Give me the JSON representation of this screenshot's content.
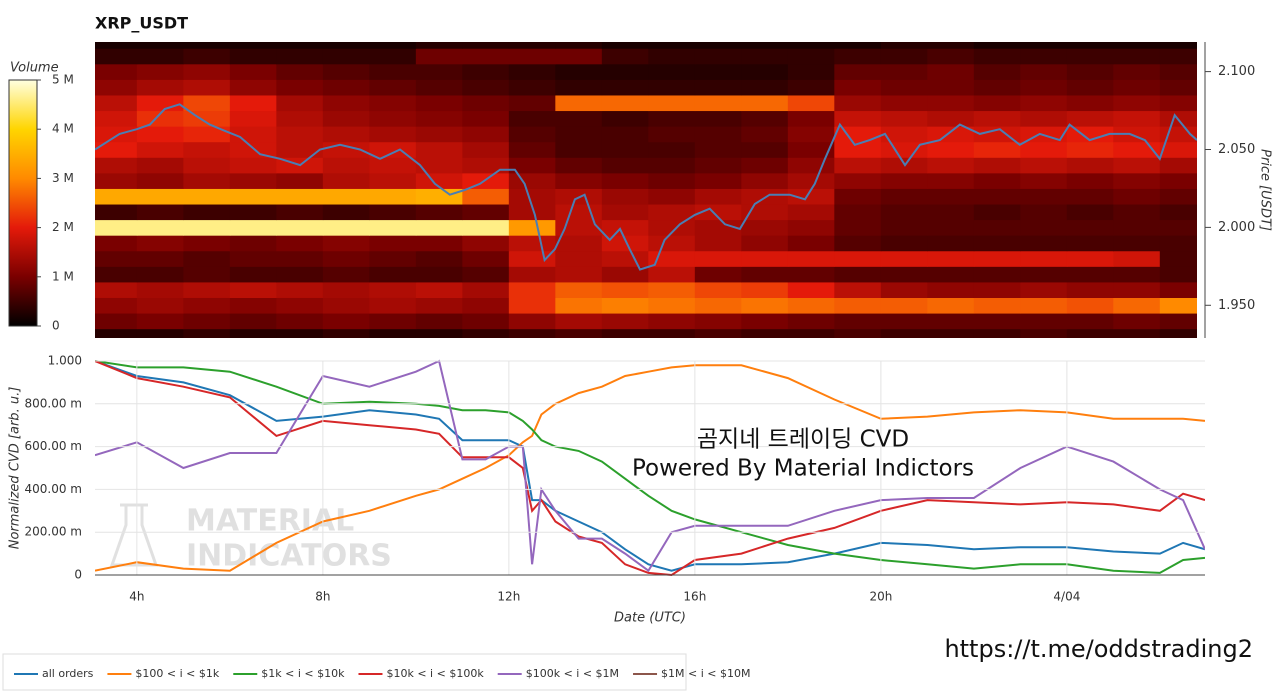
{
  "chart_data": [
    {
      "type": "heatmap",
      "title": "XRP_USDT",
      "ylabel": "Price [USDT]",
      "xlim": [
        3.1,
        26.8
      ],
      "ylim": [
        1.929,
        2.119
      ],
      "yticks": [
        {
          "value": 1.95,
          "label": "1.950"
        },
        {
          "value": 2.0,
          "label": "2.000"
        },
        {
          "value": 2.05,
          "label": "2.050"
        },
        {
          "value": 2.1,
          "label": "2.100"
        }
      ],
      "x_edges": [
        3.1,
        4,
        5,
        6,
        7,
        8,
        9,
        10,
        11,
        12,
        13,
        14,
        15,
        16,
        17,
        18,
        19,
        20,
        21,
        22,
        23,
        24,
        25,
        26,
        26.8
      ],
      "y_edges": [
        1.929,
        1.935,
        1.945,
        1.955,
        1.965,
        1.975,
        1.985,
        1.995,
        2.005,
        2.015,
        2.025,
        2.035,
        2.045,
        2.055,
        2.065,
        2.075,
        2.085,
        2.095,
        2.105,
        2.115,
        2.119
      ],
      "z": [
        [
          0.3,
          0.3,
          0.4,
          0.3,
          0.3,
          0.4,
          0.3,
          0.3,
          0.4,
          0.5,
          0.6,
          0.5,
          0.5,
          0.6,
          0.5,
          0.5,
          0.6,
          0.5,
          0.5,
          0.5,
          0.6,
          0.5,
          0.5,
          0.4
        ],
        [
          0.9,
          1.0,
          0.9,
          0.8,
          0.9,
          1.0,
          0.9,
          0.8,
          0.9,
          1.2,
          1.4,
          1.3,
          1.2,
          1.1,
          1.0,
          0.9,
          0.8,
          0.8,
          0.8,
          0.8,
          0.8,
          0.8,
          0.9,
          0.8
        ],
        [
          1.2,
          1.3,
          1.2,
          1.1,
          1.2,
          1.3,
          1.4,
          1.3,
          1.2,
          2.2,
          2.8,
          2.9,
          2.8,
          2.7,
          2.8,
          2.7,
          2.6,
          2.6,
          2.7,
          2.6,
          2.6,
          2.5,
          2.7,
          3.0
        ],
        [
          1.5,
          1.4,
          1.5,
          1.6,
          1.5,
          1.4,
          1.5,
          1.6,
          1.4,
          2.2,
          2.6,
          2.5,
          2.6,
          2.4,
          2.3,
          2.0,
          1.6,
          1.3,
          1.2,
          1.2,
          1.3,
          1.2,
          1.2,
          1.0
        ],
        [
          0.6,
          0.6,
          0.7,
          0.6,
          0.6,
          0.7,
          0.6,
          0.6,
          0.7,
          1.4,
          1.5,
          1.3,
          1.6,
          0.9,
          0.8,
          0.8,
          0.7,
          0.7,
          0.7,
          0.7,
          0.7,
          0.7,
          0.7,
          0.6
        ],
        [
          0.8,
          0.8,
          0.7,
          0.8,
          0.8,
          0.9,
          0.8,
          0.7,
          0.9,
          1.8,
          1.5,
          1.6,
          1.9,
          1.9,
          1.9,
          1.9,
          1.9,
          1.9,
          1.9,
          1.9,
          1.9,
          1.9,
          1.8,
          0.6
        ],
        [
          1.0,
          1.1,
          1.0,
          0.9,
          1.0,
          1.1,
          1.0,
          1.0,
          1.2,
          1.6,
          1.5,
          1.8,
          1.6,
          1.4,
          1.2,
          1.0,
          0.7,
          0.6,
          0.6,
          0.6,
          0.6,
          0.6,
          0.6,
          0.6
        ],
        [
          4.6,
          4.6,
          4.6,
          4.6,
          4.6,
          4.6,
          4.6,
          4.6,
          4.6,
          3.2,
          1.6,
          1.7,
          1.5,
          1.4,
          1.3,
          1.2,
          0.8,
          0.7,
          0.7,
          0.7,
          0.7,
          0.7,
          0.7,
          0.7
        ],
        [
          0.5,
          0.6,
          0.5,
          0.5,
          0.6,
          0.5,
          0.6,
          0.7,
          0.8,
          1.4,
          1.6,
          1.4,
          1.5,
          1.6,
          1.5,
          1.4,
          0.8,
          0.7,
          0.7,
          0.6,
          0.7,
          0.6,
          0.7,
          0.6
        ],
        [
          3.4,
          3.4,
          3.4,
          3.4,
          3.4,
          3.4,
          3.4,
          3.5,
          2.6,
          1.4,
          1.5,
          1.3,
          1.2,
          1.4,
          1.5,
          1.6,
          0.9,
          0.8,
          0.8,
          0.8,
          0.8,
          0.8,
          0.9,
          0.8
        ],
        [
          1.3,
          1.2,
          1.4,
          1.3,
          1.2,
          1.5,
          1.6,
          1.8,
          2.0,
          1.3,
          1.1,
          1.0,
          0.9,
          1.0,
          1.2,
          1.4,
          1.2,
          1.1,
          1.1,
          1.0,
          1.1,
          1.0,
          1.1,
          1.0
        ],
        [
          1.5,
          1.4,
          1.6,
          1.7,
          1.8,
          1.6,
          1.7,
          1.6,
          1.5,
          1.0,
          0.8,
          0.7,
          0.7,
          0.8,
          0.9,
          1.2,
          1.6,
          1.5,
          1.6,
          1.5,
          1.6,
          1.5,
          1.6,
          1.4
        ],
        [
          2.0,
          1.8,
          1.7,
          1.8,
          1.6,
          1.7,
          1.8,
          1.6,
          1.4,
          0.8,
          0.6,
          0.6,
          0.6,
          0.7,
          0.7,
          1.0,
          2.0,
          1.9,
          2.0,
          2.1,
          2.0,
          2.1,
          2.0,
          1.9
        ],
        [
          1.9,
          2.0,
          2.1,
          1.8,
          1.6,
          1.5,
          1.4,
          1.3,
          1.2,
          0.7,
          0.6,
          0.6,
          0.7,
          0.7,
          0.8,
          1.1,
          2.0,
          1.8,
          1.9,
          1.8,
          1.9,
          2.0,
          1.8,
          1.7
        ],
        [
          1.8,
          2.2,
          2.3,
          1.9,
          1.5,
          1.3,
          1.2,
          1.1,
          1.0,
          0.6,
          0.6,
          0.5,
          0.6,
          0.6,
          0.7,
          1.0,
          1.7,
          1.6,
          1.5,
          1.6,
          1.5,
          1.6,
          1.7,
          1.5
        ],
        [
          1.6,
          2.0,
          2.4,
          2.0,
          1.4,
          1.2,
          1.1,
          1.0,
          0.9,
          0.8,
          2.7,
          2.7,
          2.7,
          2.7,
          2.7,
          2.4,
          1.3,
          1.2,
          1.2,
          1.1,
          1.2,
          1.1,
          1.2,
          1.1
        ],
        [
          1.2,
          1.4,
          1.5,
          1.2,
          1.0,
          0.9,
          0.8,
          0.7,
          0.6,
          0.5,
          0.4,
          0.4,
          0.4,
          0.4,
          0.4,
          0.5,
          1.0,
          0.9,
          0.9,
          0.8,
          0.9,
          0.8,
          0.9,
          0.8
        ],
        [
          1.0,
          1.1,
          1.2,
          1.0,
          0.8,
          0.7,
          0.6,
          0.6,
          0.5,
          0.4,
          0.3,
          0.3,
          0.3,
          0.3,
          0.3,
          0.4,
          0.8,
          0.8,
          0.9,
          0.7,
          0.8,
          0.7,
          0.8,
          0.7
        ],
        [
          0.4,
          0.4,
          0.5,
          0.4,
          0.4,
          0.4,
          0.4,
          0.9,
          0.9,
          0.9,
          0.9,
          0.5,
          0.4,
          0.4,
          0.4,
          0.4,
          0.5,
          0.5,
          0.6,
          0.5,
          0.5,
          0.5,
          0.5,
          0.5
        ],
        [
          0.2,
          0.2,
          0.2,
          0.2,
          0.2,
          0.2,
          0.2,
          0.3,
          0.3,
          0.3,
          0.3,
          0.2,
          0.2,
          0.2,
          0.2,
          0.2,
          0.2,
          0.3,
          0.3,
          0.2,
          0.2,
          0.2,
          0.2,
          0.2
        ]
      ],
      "colorbar": {
        "title": "Volume",
        "lim": [
          0,
          5
        ],
        "ticks": [
          0,
          {
            "value": 1,
            "label": "1 M"
          },
          {
            "value": 2,
            "label": "2 M"
          },
          {
            "value": 3,
            "label": "3 M"
          },
          {
            "value": 4,
            "label": "4 M"
          },
          {
            "value": 5,
            "label": "5 M"
          }
        ]
      },
      "line": {
        "color": "#4a7eb4",
        "x": [
          3.1,
          3.63,
          4.0,
          4.28,
          4.6,
          4.92,
          5.25,
          5.57,
          5.89,
          6.22,
          6.65,
          7.08,
          7.51,
          7.94,
          8.37,
          8.8,
          9.23,
          9.66,
          10.09,
          10.41,
          10.73,
          11.05,
          11.38,
          11.81,
          12.13,
          12.34,
          12.56,
          12.77,
          12.99,
          13.2,
          13.42,
          13.63,
          13.85,
          14.17,
          14.39,
          14.6,
          14.82,
          15.14,
          15.35,
          15.68,
          16.0,
          16.32,
          16.65,
          16.97,
          17.29,
          17.61,
          18.04,
          18.37,
          18.58,
          18.8,
          19.12,
          19.44,
          19.76,
          20.09,
          20.52,
          20.84,
          21.27,
          21.7,
          22.13,
          22.56,
          22.99,
          23.42,
          23.85,
          24.06,
          24.49,
          24.92,
          25.35,
          25.68,
          26.0,
          26.32,
          26.65,
          26.8
        ],
        "values": [
          2.05,
          2.06,
          2.063,
          2.066,
          2.076,
          2.079,
          2.072,
          2.066,
          2.062,
          2.058,
          2.047,
          2.044,
          2.04,
          2.05,
          2.053,
          2.05,
          2.044,
          2.05,
          2.04,
          2.028,
          2.021,
          2.024,
          2.028,
          2.037,
          2.037,
          2.028,
          2.008,
          1.979,
          1.986,
          1.999,
          2.018,
          2.021,
          2.002,
          1.992,
          1.999,
          1.986,
          1.973,
          1.976,
          1.992,
          2.002,
          2.008,
          2.012,
          2.002,
          1.999,
          2.015,
          2.021,
          2.021,
          2.018,
          2.028,
          2.044,
          2.066,
          2.053,
          2.056,
          2.06,
          2.04,
          2.053,
          2.056,
          2.066,
          2.06,
          2.063,
          2.053,
          2.06,
          2.056,
          2.066,
          2.056,
          2.06,
          2.06,
          2.056,
          2.044,
          2.072,
          2.06,
          2.056
        ]
      }
    },
    {
      "type": "line",
      "xlabel": "Date (UTC)",
      "ylabel": "Normalized CVD [arb. u.]",
      "grid": true,
      "legend": "bottom-left",
      "xlim": [
        3.1,
        26.97
      ],
      "ylim": [
        0,
        1
      ],
      "xticks": [
        {
          "value": 4,
          "label": "4h"
        },
        {
          "value": 8,
          "label": "8h"
        },
        {
          "value": 12,
          "label": "12h"
        },
        {
          "value": 16,
          "label": "16h"
        },
        {
          "value": 20,
          "label": "20h"
        },
        {
          "value": 24,
          "label": "4/04"
        }
      ],
      "yticks": [
        0,
        {
          "value": 0.2,
          "label": "200.00 m"
        },
        {
          "value": 0.4,
          "label": "400.00 m"
        },
        {
          "value": 0.6,
          "label": "600.00 m"
        },
        {
          "value": 0.8,
          "label": "800.00 m"
        },
        {
          "value": 1,
          "label": "1.000"
        }
      ],
      "x": [
        3.1,
        4,
        5,
        6,
        7,
        8,
        9,
        10,
        10.5,
        11,
        11.5,
        12,
        12.3,
        12.5,
        12.7,
        13,
        13.5,
        14,
        14.5,
        15,
        15.5,
        16,
        17,
        18,
        19,
        20,
        21,
        22,
        23,
        24,
        25,
        26,
        26.5,
        26.97
      ],
      "series": [
        {
          "name": "all orders",
          "color": "#1f77b4",
          "values": [
            1.0,
            0.93,
            0.9,
            0.84,
            0.72,
            0.74,
            0.77,
            0.75,
            0.73,
            0.63,
            0.63,
            0.63,
            0.6,
            0.35,
            0.35,
            0.3,
            0.25,
            0.2,
            0.12,
            0.05,
            0.02,
            0.05,
            0.05,
            0.06,
            0.1,
            0.15,
            0.14,
            0.12,
            0.13,
            0.13,
            0.11,
            0.1,
            0.15,
            0.12
          ]
        },
        {
          "name": "$100 < i < $1k",
          "color": "#ff7f0e",
          "values": [
            0.02,
            0.06,
            0.03,
            0.02,
            0.15,
            0.25,
            0.3,
            0.37,
            0.4,
            0.45,
            0.5,
            0.56,
            0.62,
            0.65,
            0.75,
            0.8,
            0.85,
            0.88,
            0.93,
            0.95,
            0.97,
            0.98,
            0.98,
            0.92,
            0.82,
            0.73,
            0.74,
            0.76,
            0.77,
            0.76,
            0.73,
            0.73,
            0.73,
            0.72
          ]
        },
        {
          "name": "$1k < i < $10k",
          "color": "#2ca02c",
          "values": [
            1.0,
            0.97,
            0.97,
            0.95,
            0.88,
            0.8,
            0.81,
            0.8,
            0.79,
            0.77,
            0.77,
            0.76,
            0.72,
            0.68,
            0.63,
            0.6,
            0.58,
            0.53,
            0.45,
            0.37,
            0.3,
            0.26,
            0.2,
            0.14,
            0.1,
            0.07,
            0.05,
            0.03,
            0.05,
            0.05,
            0.02,
            0.01,
            0.07,
            0.08
          ]
        },
        {
          "name": "$10k < i < $100k",
          "color": "#d62728",
          "values": [
            1.0,
            0.92,
            0.88,
            0.83,
            0.65,
            0.72,
            0.7,
            0.68,
            0.66,
            0.55,
            0.55,
            0.55,
            0.5,
            0.3,
            0.35,
            0.25,
            0.18,
            0.15,
            0.05,
            0.01,
            0.0,
            0.07,
            0.1,
            0.17,
            0.22,
            0.3,
            0.35,
            0.34,
            0.33,
            0.34,
            0.33,
            0.3,
            0.38,
            0.35
          ]
        },
        {
          "name": "$100k < i < $1M",
          "color": "#9467bd",
          "values": [
            0.56,
            0.62,
            0.5,
            0.57,
            0.57,
            0.93,
            0.88,
            0.95,
            1.0,
            0.54,
            0.54,
            0.6,
            0.6,
            0.05,
            0.4,
            0.3,
            0.17,
            0.17,
            0.1,
            0.02,
            0.2,
            0.23,
            0.23,
            0.23,
            0.3,
            0.35,
            0.36,
            0.36,
            0.5,
            0.6,
            0.53,
            0.4,
            0.35,
            0.12
          ]
        },
        {
          "name": "$1M < i < $10M",
          "color": "#8c564b",
          "values": [
            null,
            null,
            null,
            null,
            null,
            null,
            null,
            null,
            null,
            null,
            null,
            null,
            null,
            null,
            null,
            null,
            null,
            null,
            null,
            null,
            null,
            null,
            null,
            null,
            null,
            null,
            null,
            null,
            null,
            null,
            null,
            null,
            null,
            null
          ]
        }
      ],
      "annotations": [
        "곰지네 트레이딩 CVD",
        "Powered By Material Indictors"
      ]
    }
  ],
  "watermark": [
    "MATERIAL",
    "INDICATORS"
  ],
  "footer": "https://t.me/oddstrading2"
}
